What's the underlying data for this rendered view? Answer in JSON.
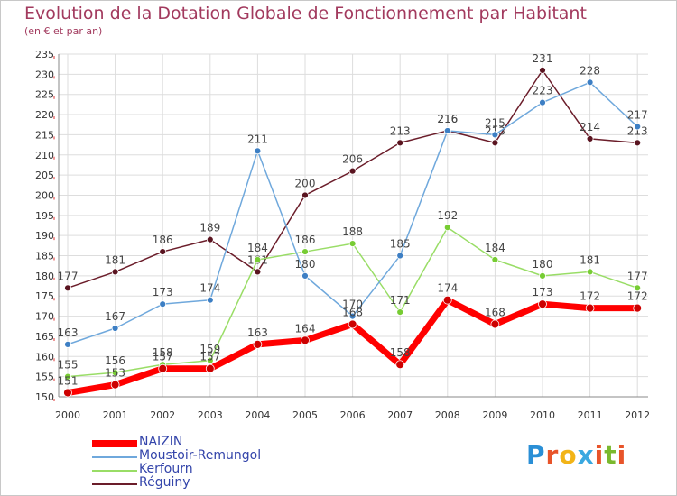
{
  "header": {
    "title": "Evolution de la Dotation Globale de Fonctionnement par Habitant",
    "subtitle": "(en € et par an)"
  },
  "logo": {
    "text": "Proxiti",
    "colors": [
      "#2a8fd6",
      "#e8542a",
      "#f2b418",
      "#3aa8e0",
      "#e8542a",
      "#7ab92e",
      "#e8542a"
    ]
  },
  "chart_data": {
    "type": "line",
    "x": [
      "2000",
      "2001",
      "2002",
      "2003",
      "2004",
      "2005",
      "2006",
      "2007",
      "2008",
      "2009",
      "2010",
      "2011",
      "2012"
    ],
    "ylim": [
      150,
      235
    ],
    "yticks": [
      "150",
      "155",
      "160",
      "165",
      "170",
      "175",
      "180",
      "185",
      "190",
      "195",
      "200",
      "205",
      "210",
      "215",
      "220",
      "225",
      "230",
      "235"
    ],
    "grid": true,
    "legend_position": "bottom-left",
    "series": [
      {
        "name": "Réguiny",
        "color": "#6b1d2a",
        "marker": "#5a1420",
        "width": 1.5,
        "values": [
          177,
          181,
          186,
          189,
          181,
          200,
          206,
          213,
          216,
          213,
          231,
          214,
          213
        ],
        "labels": [
          "177",
          "181",
          "186",
          "189",
          "181",
          "200",
          "206",
          "213",
          "216",
          "213",
          "231",
          "214",
          "213"
        ]
      },
      {
        "name": "Kerfourn",
        "color": "#99dd66",
        "marker": "#77cc33",
        "width": 1.5,
        "values": [
          155,
          156,
          158,
          159,
          184,
          186,
          188,
          171,
          192,
          184,
          180,
          181,
          177
        ],
        "labels": [
          "155",
          "156",
          "158",
          "159",
          "184",
          "186",
          "188",
          "171",
          "192",
          "184",
          "180",
          "181",
          "177"
        ]
      },
      {
        "name": "Moustoir-Remungol",
        "color": "#6fa8dc",
        "marker": "#3d7fc4",
        "width": 1.5,
        "values": [
          163,
          167,
          173,
          174,
          211,
          180,
          170,
          185,
          216,
          215,
          223,
          228,
          217
        ],
        "labels": [
          "163",
          "167",
          "173",
          "174",
          "211",
          "180",
          "170",
          "185",
          "216",
          "215",
          "223",
          "228",
          "217"
        ]
      },
      {
        "name": "NAIZIN",
        "color": "#ff0000",
        "marker": "#cc0000",
        "width": 7,
        "values": [
          151,
          153,
          157,
          157,
          163,
          164,
          168,
          158,
          174,
          168,
          173,
          172,
          172
        ],
        "labels": [
          "151",
          "153",
          "157",
          "157",
          "163",
          "164",
          "168",
          "158",
          "174",
          "168",
          "173",
          "172",
          "172"
        ]
      }
    ]
  },
  "legend": [
    {
      "label": "NAIZIN",
      "color": "#ff0000",
      "thick": true
    },
    {
      "label": "Moustoir-Remungol",
      "color": "#6fa8dc",
      "thick": false
    },
    {
      "label": "Kerfourn",
      "color": "#99dd66",
      "thick": false
    },
    {
      "label": "Réguiny",
      "color": "#6b1d2a",
      "thick": false
    }
  ]
}
